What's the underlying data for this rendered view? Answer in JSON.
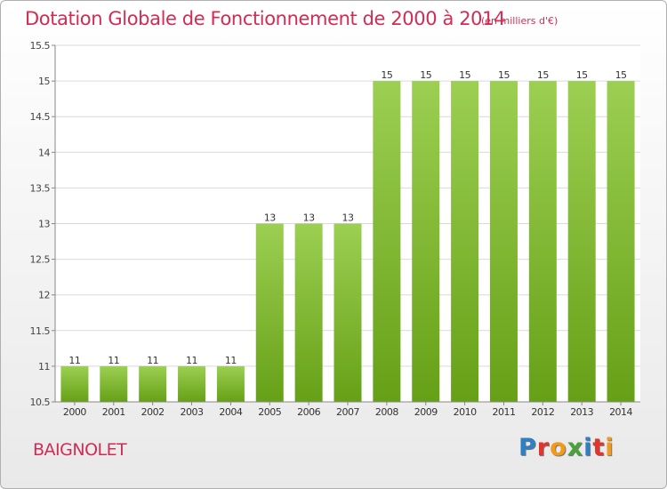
{
  "title": "Dotation Globale de Fonctionnement de 2000 à 2014",
  "unit_note": "(en milliers d'€)",
  "commune": "BAIGNOLET",
  "logo": {
    "text": "Proxiti",
    "colors": [
      "#2f7fc4",
      "#e2342a",
      "#f29a1a",
      "#49a33a",
      "#2f7fc4",
      "#e2342a",
      "#f29a1a"
    ]
  },
  "colors": {
    "bar_top": "#9ccf52",
    "bar_bottom": "#66a017",
    "text_accent": "#d12c54",
    "grid": "#d9d9d9"
  },
  "chart_data": {
    "type": "bar",
    "categories": [
      "2000",
      "2001",
      "2002",
      "2003",
      "2004",
      "2005",
      "2006",
      "2007",
      "2008",
      "2009",
      "2010",
      "2011",
      "2012",
      "2013",
      "2014"
    ],
    "values": [
      11,
      11,
      11,
      11,
      11,
      13,
      13,
      13,
      15,
      15,
      15,
      15,
      15,
      15,
      15
    ],
    "data_labels": [
      "11",
      "11",
      "11",
      "11",
      "11",
      "13",
      "13",
      "13",
      "15",
      "15",
      "15",
      "15",
      "15",
      "15",
      "15"
    ],
    "yticks": [
      "10.5",
      "11",
      "11.5",
      "12",
      "12.5",
      "13",
      "13.5",
      "14",
      "14.5",
      "15",
      "15.5"
    ],
    "ylim": [
      10.5,
      15.5
    ],
    "grid": true,
    "title": "Dotation Globale de Fonctionnement de 2000 à 2014",
    "xlabel": "",
    "ylabel": ""
  }
}
